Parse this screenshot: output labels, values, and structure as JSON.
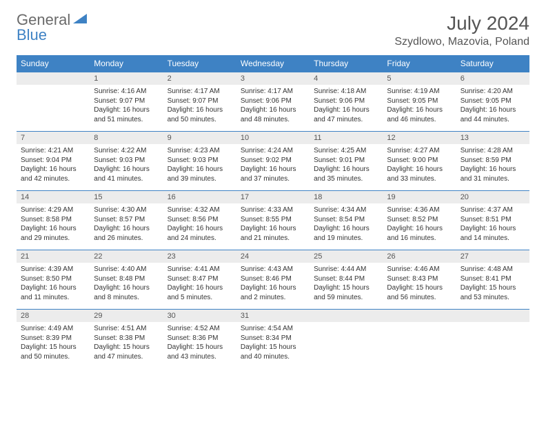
{
  "logo": {
    "word1": "General",
    "word2": "Blue"
  },
  "title": "July 2024",
  "location": "Szydlowo, Mazovia, Poland",
  "colors": {
    "header_bg": "#3e82c4",
    "header_text": "#ffffff",
    "daynum_bg": "#ececec",
    "daynum_border": "#3e82c4",
    "text": "#333333",
    "logo_gray": "#6a6a6a",
    "logo_blue": "#3e82c4"
  },
  "daynames": [
    "Sunday",
    "Monday",
    "Tuesday",
    "Wednesday",
    "Thursday",
    "Friday",
    "Saturday"
  ],
  "weeks": [
    [
      {
        "num": "",
        "lines": []
      },
      {
        "num": "1",
        "lines": [
          "Sunrise: 4:16 AM",
          "Sunset: 9:07 PM",
          "Daylight: 16 hours and 51 minutes."
        ]
      },
      {
        "num": "2",
        "lines": [
          "Sunrise: 4:17 AM",
          "Sunset: 9:07 PM",
          "Daylight: 16 hours and 50 minutes."
        ]
      },
      {
        "num": "3",
        "lines": [
          "Sunrise: 4:17 AM",
          "Sunset: 9:06 PM",
          "Daylight: 16 hours and 48 minutes."
        ]
      },
      {
        "num": "4",
        "lines": [
          "Sunrise: 4:18 AM",
          "Sunset: 9:06 PM",
          "Daylight: 16 hours and 47 minutes."
        ]
      },
      {
        "num": "5",
        "lines": [
          "Sunrise: 4:19 AM",
          "Sunset: 9:05 PM",
          "Daylight: 16 hours and 46 minutes."
        ]
      },
      {
        "num": "6",
        "lines": [
          "Sunrise: 4:20 AM",
          "Sunset: 9:05 PM",
          "Daylight: 16 hours and 44 minutes."
        ]
      }
    ],
    [
      {
        "num": "7",
        "lines": [
          "Sunrise: 4:21 AM",
          "Sunset: 9:04 PM",
          "Daylight: 16 hours and 42 minutes."
        ]
      },
      {
        "num": "8",
        "lines": [
          "Sunrise: 4:22 AM",
          "Sunset: 9:03 PM",
          "Daylight: 16 hours and 41 minutes."
        ]
      },
      {
        "num": "9",
        "lines": [
          "Sunrise: 4:23 AM",
          "Sunset: 9:03 PM",
          "Daylight: 16 hours and 39 minutes."
        ]
      },
      {
        "num": "10",
        "lines": [
          "Sunrise: 4:24 AM",
          "Sunset: 9:02 PM",
          "Daylight: 16 hours and 37 minutes."
        ]
      },
      {
        "num": "11",
        "lines": [
          "Sunrise: 4:25 AM",
          "Sunset: 9:01 PM",
          "Daylight: 16 hours and 35 minutes."
        ]
      },
      {
        "num": "12",
        "lines": [
          "Sunrise: 4:27 AM",
          "Sunset: 9:00 PM",
          "Daylight: 16 hours and 33 minutes."
        ]
      },
      {
        "num": "13",
        "lines": [
          "Sunrise: 4:28 AM",
          "Sunset: 8:59 PM",
          "Daylight: 16 hours and 31 minutes."
        ]
      }
    ],
    [
      {
        "num": "14",
        "lines": [
          "Sunrise: 4:29 AM",
          "Sunset: 8:58 PM",
          "Daylight: 16 hours and 29 minutes."
        ]
      },
      {
        "num": "15",
        "lines": [
          "Sunrise: 4:30 AM",
          "Sunset: 8:57 PM",
          "Daylight: 16 hours and 26 minutes."
        ]
      },
      {
        "num": "16",
        "lines": [
          "Sunrise: 4:32 AM",
          "Sunset: 8:56 PM",
          "Daylight: 16 hours and 24 minutes."
        ]
      },
      {
        "num": "17",
        "lines": [
          "Sunrise: 4:33 AM",
          "Sunset: 8:55 PM",
          "Daylight: 16 hours and 21 minutes."
        ]
      },
      {
        "num": "18",
        "lines": [
          "Sunrise: 4:34 AM",
          "Sunset: 8:54 PM",
          "Daylight: 16 hours and 19 minutes."
        ]
      },
      {
        "num": "19",
        "lines": [
          "Sunrise: 4:36 AM",
          "Sunset: 8:52 PM",
          "Daylight: 16 hours and 16 minutes."
        ]
      },
      {
        "num": "20",
        "lines": [
          "Sunrise: 4:37 AM",
          "Sunset: 8:51 PM",
          "Daylight: 16 hours and 14 minutes."
        ]
      }
    ],
    [
      {
        "num": "21",
        "lines": [
          "Sunrise: 4:39 AM",
          "Sunset: 8:50 PM",
          "Daylight: 16 hours and 11 minutes."
        ]
      },
      {
        "num": "22",
        "lines": [
          "Sunrise: 4:40 AM",
          "Sunset: 8:48 PM",
          "Daylight: 16 hours and 8 minutes."
        ]
      },
      {
        "num": "23",
        "lines": [
          "Sunrise: 4:41 AM",
          "Sunset: 8:47 PM",
          "Daylight: 16 hours and 5 minutes."
        ]
      },
      {
        "num": "24",
        "lines": [
          "Sunrise: 4:43 AM",
          "Sunset: 8:46 PM",
          "Daylight: 16 hours and 2 minutes."
        ]
      },
      {
        "num": "25",
        "lines": [
          "Sunrise: 4:44 AM",
          "Sunset: 8:44 PM",
          "Daylight: 15 hours and 59 minutes."
        ]
      },
      {
        "num": "26",
        "lines": [
          "Sunrise: 4:46 AM",
          "Sunset: 8:43 PM",
          "Daylight: 15 hours and 56 minutes."
        ]
      },
      {
        "num": "27",
        "lines": [
          "Sunrise: 4:48 AM",
          "Sunset: 8:41 PM",
          "Daylight: 15 hours and 53 minutes."
        ]
      }
    ],
    [
      {
        "num": "28",
        "lines": [
          "Sunrise: 4:49 AM",
          "Sunset: 8:39 PM",
          "Daylight: 15 hours and 50 minutes."
        ]
      },
      {
        "num": "29",
        "lines": [
          "Sunrise: 4:51 AM",
          "Sunset: 8:38 PM",
          "Daylight: 15 hours and 47 minutes."
        ]
      },
      {
        "num": "30",
        "lines": [
          "Sunrise: 4:52 AM",
          "Sunset: 8:36 PM",
          "Daylight: 15 hours and 43 minutes."
        ]
      },
      {
        "num": "31",
        "lines": [
          "Sunrise: 4:54 AM",
          "Sunset: 8:34 PM",
          "Daylight: 15 hours and 40 minutes."
        ]
      },
      {
        "num": "",
        "lines": []
      },
      {
        "num": "",
        "lines": []
      },
      {
        "num": "",
        "lines": []
      }
    ]
  ]
}
